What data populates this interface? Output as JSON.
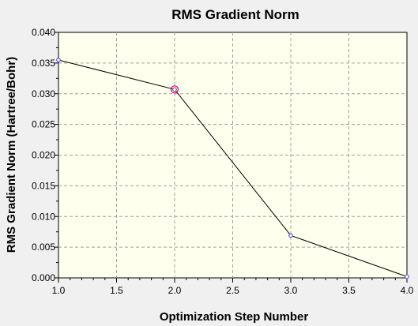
{
  "chart_data": {
    "type": "line",
    "title": "RMS Gradient Norm",
    "xlabel": "Optimization Step Number",
    "ylabel": "RMS Gradient Norm (Hartree/Bohr)",
    "xlim": [
      1.0,
      4.0
    ],
    "ylim": [
      0.0,
      0.04
    ],
    "x_ticks": [
      "1.0",
      "1.5",
      "2.0",
      "2.5",
      "3.0",
      "3.5",
      "4.0"
    ],
    "y_ticks": [
      "0.000",
      "0.005",
      "0.010",
      "0.015",
      "0.020",
      "0.025",
      "0.030",
      "0.035",
      "0.040"
    ],
    "grid": true,
    "series": [
      {
        "x": [
          1,
          2,
          3,
          4
        ],
        "y": [
          0.0355,
          0.0307,
          0.0069,
          0.0002
        ]
      }
    ],
    "highlighted_point_index": 1,
    "colors": {
      "plot_background": "#ffffee",
      "page_background": "#f0f0f0",
      "marker": "#4040c0",
      "highlight": "#e0004a",
      "line": "#000000"
    }
  }
}
